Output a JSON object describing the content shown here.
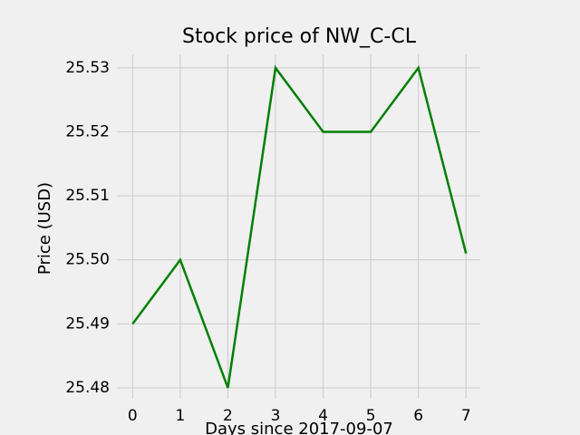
{
  "chart_data": {
    "type": "line",
    "title": "Stock price of NW_C-CL",
    "xlabel": "Days since 2017-09-07",
    "ylabel": "Price (USD)",
    "x": [
      0,
      1,
      2,
      3,
      4,
      5,
      6,
      7
    ],
    "series": [
      {
        "name": "NW_C-CL",
        "color": "#008000",
        "values": [
          25.49,
          25.5,
          25.48,
          25.53,
          25.52,
          25.52,
          25.53,
          25.501
        ]
      }
    ],
    "xlim": [
      -0.33,
      7.3
    ],
    "xticks": [
      0,
      1,
      2,
      3,
      4,
      5,
      6,
      7
    ],
    "ylim": [
      25.4783,
      25.5321
    ],
    "yticks": [
      25.48,
      25.49,
      {
        "value": 25.5,
        "label": "25.50"
      },
      25.51,
      25.52,
      25.53
    ],
    "grid": true
  }
}
